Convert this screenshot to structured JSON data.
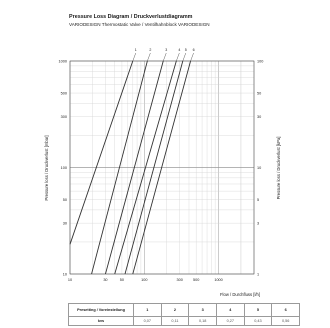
{
  "header": {
    "title": "Pressure Loss Diagram / Druckverlustdiagramm",
    "subtitle": "VARIODESIGN Thermostatic Valve / Ventilhahnblock VARIODESIGN"
  },
  "chart_data": {
    "type": "line",
    "title": "Pressure Loss Diagram / Druckverlustdiagramm",
    "xlabel": "Flow / Durchfluss [l/h]",
    "ylabel_left": "Pressure loss / Druckverlust [mbar]",
    "ylabel_right": "Pressure loss / Druckverlust [kPa]",
    "xscale": "log",
    "yscale": "log",
    "xlim": [
      10,
      3000
    ],
    "ylim": [
      10,
      1000
    ],
    "x_ticks": [
      "10",
      "30",
      "50",
      "100",
      "300",
      "500",
      "1000"
    ],
    "y_ticks_left": [
      "10",
      "30",
      "50",
      "100",
      "300",
      "500",
      "1000"
    ],
    "y_ticks_right": [
      "1",
      "3",
      "5",
      "10",
      "30",
      "50",
      "100"
    ],
    "grid": true,
    "series": [
      {
        "name": "1",
        "x": [
          10,
          70
        ],
        "y": [
          19,
          1000
        ]
      },
      {
        "name": "2",
        "x": [
          19.5,
          110
        ],
        "y": [
          10,
          1000
        ]
      },
      {
        "name": "3",
        "x": [
          30,
          180
        ],
        "y": [
          10,
          1000
        ]
      },
      {
        "name": "4",
        "x": [
          40,
          270
        ],
        "y": [
          10,
          1000
        ]
      },
      {
        "name": "5",
        "x": [
          55,
          330
        ],
        "y": [
          10,
          1000
        ]
      },
      {
        "name": "6",
        "x": [
          70,
          420
        ],
        "y": [
          10,
          1000
        ]
      }
    ]
  },
  "table": {
    "header_first": "Presetting / Voreinstellung",
    "columns": [
      "1",
      "2",
      "3",
      "4",
      "5",
      "6"
    ],
    "rows": [
      {
        "label": "kvs",
        "values": [
          "0,07",
          "0,11",
          "0,18",
          "0,27",
          "0,43",
          "0,56"
        ]
      }
    ]
  }
}
